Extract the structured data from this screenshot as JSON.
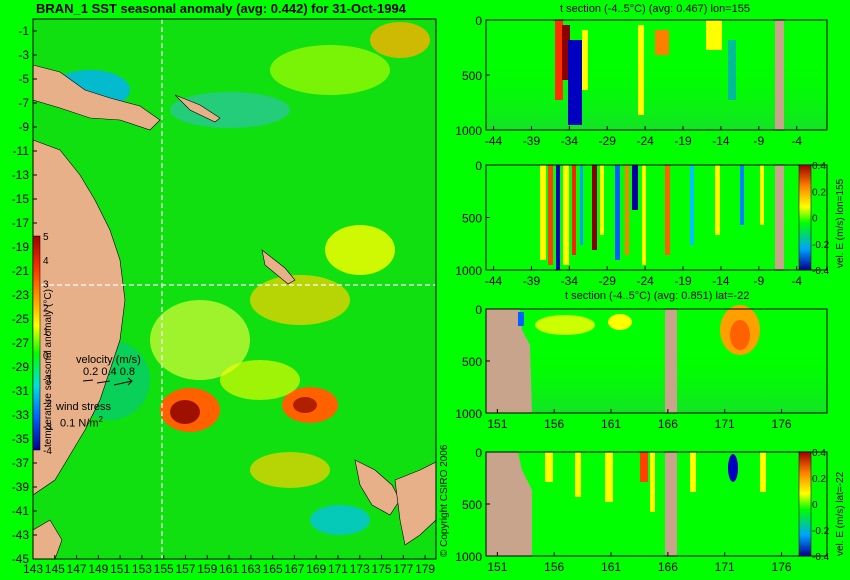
{
  "titles": {
    "main": "BRAN_1 SST seasonal anomaly (avg: 0.442) for 31-Oct-1994",
    "panel1": "t section (-4..5°C) (avg: 0.467) lon=155",
    "panel3": "t section (-4..5°C) (avg: 0.851) lat=-22"
  },
  "labels": {
    "colorbar_main": "temperature seasonal anomaly (°C)",
    "velocity_title": "velocity (m/s)",
    "velocity_scale": "0.2 0.4 0.8",
    "wind_title": "wind stress",
    "wind_scale": "0.1 N/m",
    "wind_sup": "2",
    "copyright": "© Copyright CSIRO 2006",
    "vel_label_lon": "vel. E (m/s) lon=155",
    "vel_label_lat": "vel. E (m/s) lat=-22"
  },
  "colors": {
    "background": "#00ff00",
    "land": "#e8b088",
    "section_land": "#c8a48c",
    "crosshair": "#ffffff"
  },
  "chart_data": [
    {
      "type": "heatmap",
      "title": "BRAN_1 SST seasonal anomaly (avg: 0.442) for 31-Oct-1994",
      "x_ticks": [
        "143",
        "145",
        "147",
        "149",
        "151",
        "153",
        "155",
        "157",
        "159",
        "161",
        "163",
        "165",
        "167",
        "169",
        "171",
        "173",
        "175",
        "177",
        "179"
      ],
      "y_ticks": [
        "-1",
        "-3",
        "-5",
        "-7",
        "-9",
        "-11",
        "-13",
        "-15",
        "-17",
        "-19",
        "-21",
        "-23",
        "-25",
        "-27",
        "-29",
        "-31",
        "-33",
        "-35",
        "-37",
        "-39",
        "-41",
        "-43",
        "-45"
      ],
      "xlim": [
        143,
        180
      ],
      "ylim": [
        -45,
        0
      ],
      "crosshair": {
        "lon": 155,
        "lat": -22
      },
      "colorbar": {
        "ticks": [
          "5",
          "4",
          "3",
          "2",
          "1",
          "0",
          "-1",
          "-2",
          "-3",
          "-4"
        ],
        "range": [
          -4,
          5
        ],
        "label": "temperature seasonal anomaly (°C)"
      }
    },
    {
      "type": "heatmap",
      "title": "t section (-4..5°C) (avg: 0.467) lon=155",
      "x_ticks": [
        "-44",
        "-39",
        "-34",
        "-29",
        "-24",
        "-19",
        "-14",
        "-9",
        "-4"
      ],
      "y_ticks": [
        "0",
        "500",
        "1000"
      ],
      "xlim": [
        -45,
        0
      ],
      "ylim": [
        1000,
        0
      ]
    },
    {
      "type": "heatmap",
      "x_ticks": [
        "-44",
        "-39",
        "-34",
        "-29",
        "-24",
        "-19",
        "-14",
        "-9",
        "-4"
      ],
      "y_ticks": [
        "0",
        "500",
        "1000"
      ],
      "xlim": [
        -45,
        0
      ],
      "ylim": [
        1000,
        0
      ],
      "colorbar": {
        "ticks": [
          "0.4",
          "0.2",
          "0",
          "-0.2",
          "-0.4"
        ],
        "range": [
          -0.4,
          0.4
        ],
        "label": "vel. E (m/s) lon=155"
      }
    },
    {
      "type": "heatmap",
      "title": "t section (-4..5°C) (avg: 0.851) lat=-22",
      "x_ticks": [
        "151",
        "156",
        "161",
        "166",
        "171",
        "176"
      ],
      "y_ticks": [
        "0",
        "500",
        "1000"
      ],
      "xlim": [
        150,
        180
      ],
      "ylim": [
        1000,
        0
      ]
    },
    {
      "type": "heatmap",
      "x_ticks": [
        "151",
        "156",
        "161",
        "166",
        "171",
        "176"
      ],
      "y_ticks": [
        "0",
        "500",
        "1000"
      ],
      "xlim": [
        150,
        180
      ],
      "ylim": [
        1000,
        0
      ],
      "colorbar": {
        "ticks": [
          "0.4",
          "0.2",
          "0",
          "-0.2",
          "-0.4"
        ],
        "range": [
          -0.4,
          0.4
        ],
        "label": "vel. E (m/s) lat=-22"
      }
    }
  ]
}
